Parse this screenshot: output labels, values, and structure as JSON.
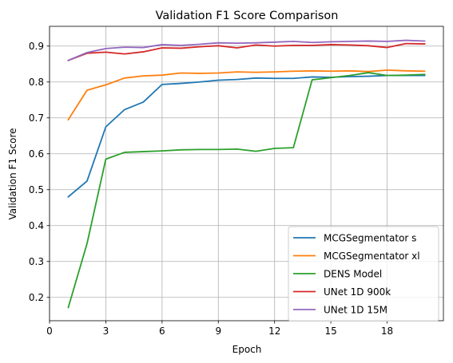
{
  "chart_data": {
    "type": "line",
    "title": "Validation F1 Score Comparison",
    "xlabel": "Epoch",
    "ylabel": "Validation F1 Score",
    "xlim": [
      0,
      21
    ],
    "ylim": [
      0.135,
      0.955
    ],
    "x_ticks": [
      0,
      3,
      6,
      9,
      12,
      15,
      18
    ],
    "y_ticks": [
      0.2,
      0.3,
      0.4,
      0.5,
      0.6,
      0.7,
      0.8,
      0.9
    ],
    "grid": true,
    "legend_position": "lower-right",
    "x": [
      1,
      2,
      3,
      4,
      5,
      6,
      7,
      8,
      9,
      10,
      11,
      12,
      13,
      14,
      15,
      16,
      17,
      18,
      19,
      20
    ],
    "series": [
      {
        "name": "MCGSegmentator s",
        "color": "#1f77b4",
        "values": [
          0.48,
          0.524,
          0.675,
          0.723,
          0.744,
          0.793,
          0.796,
          0.8,
          0.805,
          0.807,
          0.811,
          0.81,
          0.81,
          0.814,
          0.813,
          0.815,
          0.816,
          0.818,
          0.818,
          0.818
        ]
      },
      {
        "name": "MCGSegmentator xl",
        "color": "#ff7f0e",
        "values": [
          0.695,
          0.777,
          0.792,
          0.811,
          0.817,
          0.819,
          0.825,
          0.824,
          0.825,
          0.828,
          0.827,
          0.828,
          0.83,
          0.831,
          0.83,
          0.831,
          0.829,
          0.833,
          0.831,
          0.83
        ]
      },
      {
        "name": "DENS Model",
        "color": "#2ca02c",
        "values": [
          0.172,
          0.35,
          0.585,
          0.604,
          0.606,
          0.608,
          0.611,
          0.612,
          0.612,
          0.613,
          0.607,
          0.615,
          0.617,
          0.806,
          0.812,
          0.818,
          0.826,
          0.818,
          0.819,
          0.821
        ]
      },
      {
        "name": "UNet 1D 900k",
        "color": "#d62728",
        "values": [
          0.86,
          0.88,
          0.883,
          0.878,
          0.884,
          0.895,
          0.894,
          0.898,
          0.901,
          0.895,
          0.903,
          0.9,
          0.902,
          0.902,
          0.904,
          0.903,
          0.901,
          0.896,
          0.907,
          0.906
        ]
      },
      {
        "name": "UNet 1D 15M",
        "color": "#9467bd",
        "values": [
          0.86,
          0.882,
          0.893,
          0.897,
          0.896,
          0.904,
          0.902,
          0.905,
          0.909,
          0.908,
          0.909,
          0.911,
          0.913,
          0.91,
          0.912,
          0.913,
          0.914,
          0.913,
          0.916,
          0.914
        ]
      }
    ]
  }
}
